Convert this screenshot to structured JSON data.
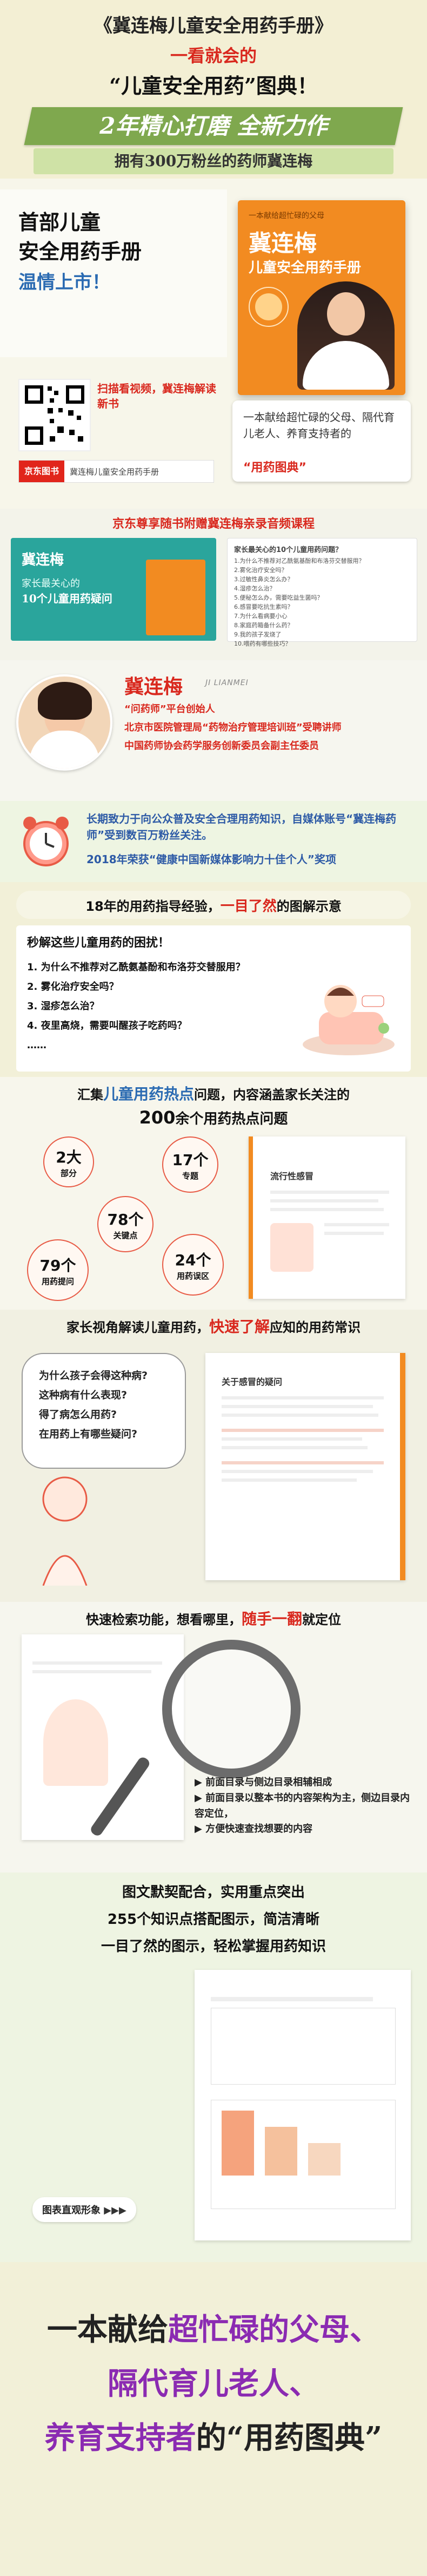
{
  "header": {
    "title": "《冀连梅儿童安全用药手册》",
    "subtitle": "一看就会的",
    "headline": "“儿童安全用药”图典！",
    "banner1": "2年精心打磨 全新力作",
    "banner2": "拥有300万粉丝的药师冀连梅"
  },
  "book_intro": {
    "left_title_1": "首部儿童",
    "left_title_2": "安全用药手册",
    "left_title_3": "温情上市！",
    "qr_caption": "扫描看视频，冀连梅解读新书",
    "jd_badge": "京东图书",
    "jd_text": "冀连梅儿童安全用药手册",
    "book_cover_top": "一本献给超忙碌的父母",
    "book_cover_title": "冀连梅",
    "book_cover_sub": "儿童安全用药手册",
    "book_tagline": "一本献给超忙碌的父母、隔代育儿老人、养育支持者的",
    "book_tagline_emph": "“用药图典”"
  },
  "audio_course": {
    "title": "京东尊享随书附赠冀连梅亲录音频课程",
    "card_big": "冀连梅",
    "card_sub1": "家长最关心的",
    "card_sub2": "10个儿童用药疑问",
    "list_title": "家长最关心的10个儿童用药问题？",
    "list": [
      "1.为什么不推荐对乙酰氨基酚和布洛芬交替服用？",
      "2.雾化治疗安全吗？",
      "3.过敏性鼻炎怎么办？",
      "4.湿疹怎么治？",
      "5.便秘怎么办，需要吃益生菌吗？",
      "6.感冒要吃抗生素吗？",
      "7.为什么看病要小心",
      "8.家庭药箱备什么药？",
      "9.我的孩子发烧了",
      "10.喂药有哪些技巧？"
    ]
  },
  "author": {
    "name": "冀连梅",
    "name_en": "JI LIANMEI",
    "role1": "“问药师”平台创始人",
    "role2": "北京市医院管理局“药物治疗管理培训班”受聘讲师",
    "role3": "中国药师协会药学服务创新委员会副主任委员",
    "note1": "长期致力于向公众普及安全合理用药知识，自媒体账号“冀连梅药师”受到数百万粉丝关注。",
    "note2": "2018年荣获“健康中国新媒体影响力十佳个人”奖项"
  },
  "section_experience": {
    "heading_pre": "18年的用药指导经验，",
    "heading_emph": "一目了然",
    "heading_post": "的图解示意",
    "problem_title": "秒解这些儿童用药的困扰！",
    "problems": [
      "1. 为什么不推荐对乙酰氨基酚和布洛芬交替服用？",
      "2. 雾化治疗安全吗？",
      "3. 湿疹怎么治？",
      "4. 夜里高烧，需要叫醒孩子吃药吗？"
    ],
    "more": "……"
  },
  "section_hotspots": {
    "heading_pre": "汇集",
    "heading_emph": "儿童用药热点",
    "heading_post": "问题，内容涵盖家长关注的",
    "heading2_num": "200",
    "heading2_post": "余个用药热点问题",
    "bubbles": [
      {
        "num": "2大",
        "label": "部分"
      },
      {
        "num": "17个",
        "label": "专题"
      },
      {
        "num": "78个",
        "label": "关键点"
      },
      {
        "num": "79个",
        "label": "用药提问"
      },
      {
        "num": "24个",
        "label": "用药误区"
      }
    ],
    "page_title": "流行性感冒"
  },
  "section_perspective": {
    "heading_pre": "家长视角解读儿童用药，",
    "heading_emph": "快速了解",
    "heading_post": "应知的用药常识",
    "questions": [
      "为什么孩子会得这种病?",
      "这种病有什么表现?",
      "得了病怎么用药?",
      "在用药上有哪些疑问?"
    ],
    "page_title": "关于感冒的疑问"
  },
  "section_search": {
    "heading_pre": "快速检索功能，想看哪里，",
    "heading_emph": "随手一翻",
    "heading_post": "就定位",
    "bullets": [
      "前面目录与侧边目录相辅相成",
      "前面目录以整本书的内容架构为主，侧边目录内容定位，",
      "方便快速查找想要的内容"
    ]
  },
  "section_images": {
    "line1": "图文默契配合，实用重点突出",
    "line2": "255个知识点搭配图示，简洁清晰",
    "line3": "一目了然的图示，轻松掌握用药知识",
    "badge": "图表直观形象"
  },
  "footer": {
    "line1_pre": "一本献给",
    "line1_emph": "超忙碌的父母、",
    "line2": "隔代育儿老人、",
    "line3_pre": "养育支持者",
    "line3_post": "的“用药图典”"
  },
  "colors": {
    "accent_red": "#d9281e",
    "accent_green": "#8fb25a",
    "accent_orange": "#f08a1a",
    "banner_green": "#7fa84e"
  }
}
